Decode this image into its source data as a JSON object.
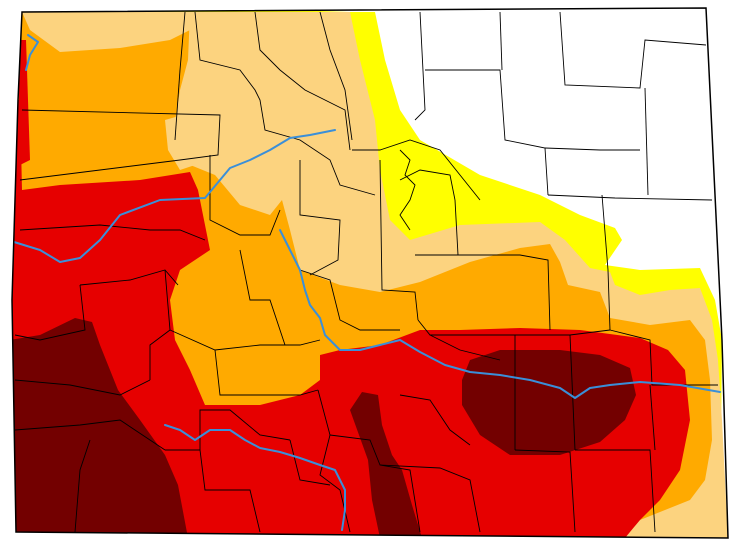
{
  "map": {
    "colors": {
      "background": "#ffffff",
      "none": "#ffffff",
      "abnormally_dry": "#ffff00",
      "moderate": "#fcd37f",
      "severe": "#ffaa00",
      "extreme": "#e60000",
      "exceptional": "#730000",
      "rivers": "#3a8fd9",
      "county_lines": "#000000"
    },
    "categories": [
      "none",
      "abnormally_dry",
      "moderate",
      "severe",
      "extreme",
      "exceptional"
    ]
  }
}
